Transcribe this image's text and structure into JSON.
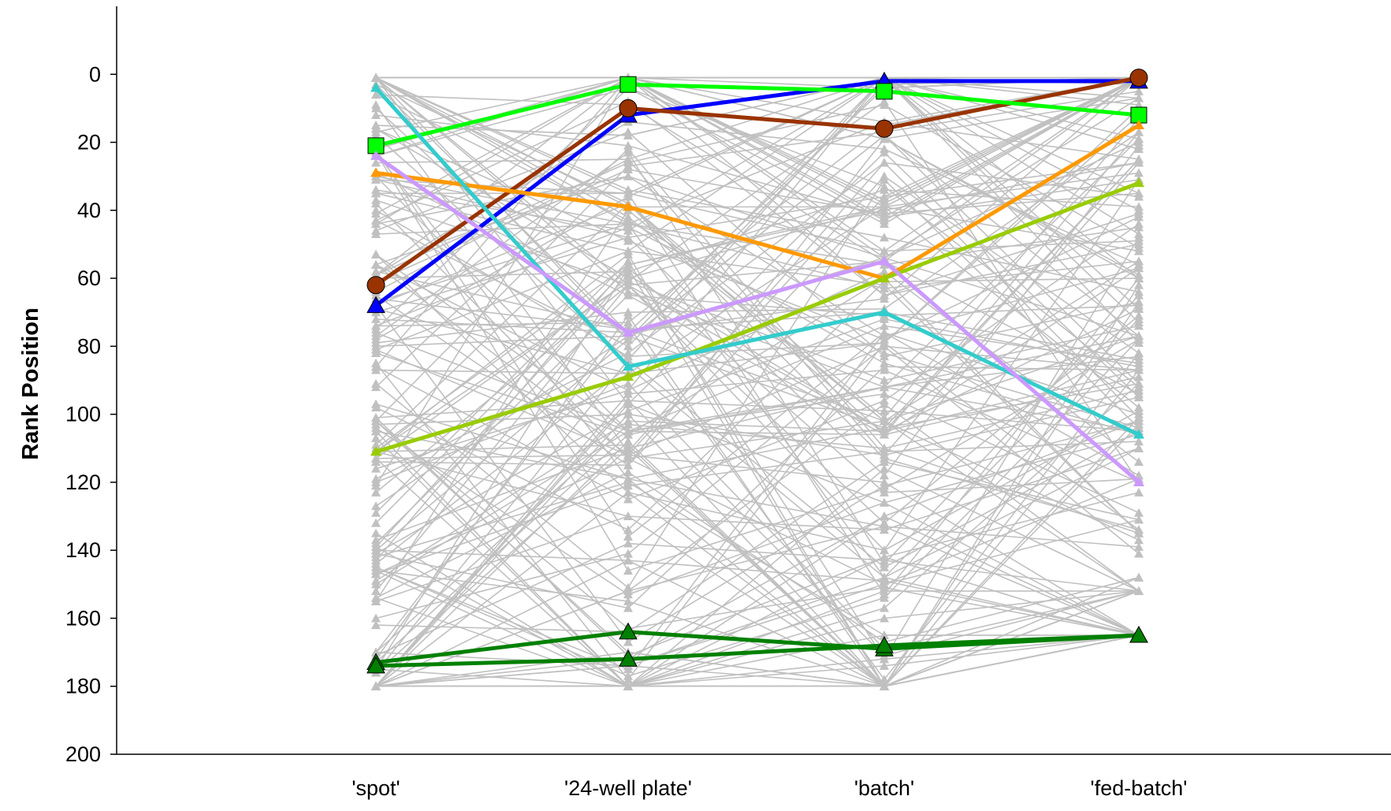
{
  "chart_data": {
    "type": "line",
    "title": "",
    "xlabel": "",
    "ylabel": "Rank Position",
    "categories": [
      "'spot'",
      "'24-well plate'",
      "'batch'",
      "'fed-batch'"
    ],
    "yticks": [
      "0",
      "20",
      "40",
      "60",
      "80",
      "100",
      "120",
      "140",
      "160",
      "180",
      "200"
    ],
    "ylim": [
      200,
      -20
    ],
    "y_inverted": true,
    "grid": false,
    "legend": "none",
    "background_series": {
      "color": "#c0c0c0",
      "marker": "triangle",
      "count": 180,
      "note_values_omitted": false
    },
    "series": [
      {
        "values": [
          68,
          12,
          2,
          2
        ],
        "color": "#0000ff",
        "marker": "triangle"
      },
      {
        "values": [
          62,
          10,
          16,
          1
        ],
        "color": "#993300",
        "marker": "circle"
      },
      {
        "values": [
          21,
          3,
          5,
          12
        ],
        "color": "#00ff00",
        "marker": "square"
      },
      {
        "values": [
          29,
          39,
          60,
          15
        ],
        "color": "#ff9900",
        "marker": "triangle-small"
      },
      {
        "values": [
          111,
          89,
          60,
          32
        ],
        "color": "#99cc00",
        "marker": "triangle-small"
      },
      {
        "values": [
          4,
          86,
          70,
          106
        ],
        "color": "#33cccc",
        "marker": "triangle-small"
      },
      {
        "values": [
          24,
          76,
          55,
          120
        ],
        "color": "#cc99ff",
        "marker": "triangle-small"
      },
      {
        "values": [
          173,
          164,
          169,
          165
        ],
        "color": "#008000",
        "marker": "triangle"
      },
      {
        "values": [
          174,
          172,
          168,
          165
        ],
        "color": "#008000",
        "marker": "triangle"
      }
    ]
  }
}
